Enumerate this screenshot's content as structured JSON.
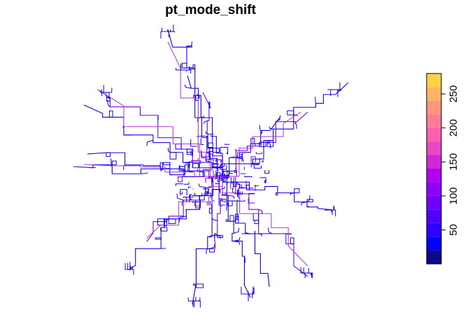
{
  "title": "pt_mode_shift",
  "legend": {
    "breaks": [
      0,
      20,
      40,
      60,
      80,
      100,
      120,
      140,
      160,
      180,
      200,
      220,
      240,
      260,
      280
    ],
    "colors": [
      "#0D0887",
      "#0000FF",
      "#2D00FF",
      "#4E00FF",
      "#6F00FF",
      "#9000FF",
      "#B200F0",
      "#CF28D9",
      "#E847C6",
      "#FF5FB0",
      "#FF7A97",
      "#FF9480",
      "#FFB463",
      "#FFD147",
      "#FFFB1F"
    ],
    "tick_labels": [
      "50",
      "100",
      "150",
      "200",
      "250"
    ],
    "tick_values": [
      50,
      100,
      150,
      200,
      250
    ]
  },
  "map": {
    "line_colors": {
      "low": "#1400E6",
      "mid": "#7A00F0",
      "high": "#B22CE0"
    }
  }
}
